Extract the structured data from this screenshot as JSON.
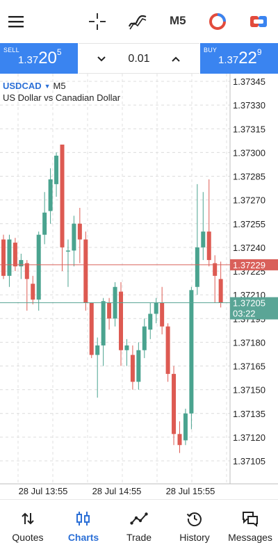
{
  "toolbar": {
    "timeframe_label": "M5",
    "icons": [
      "menu-icon",
      "crosshair-icon",
      "indicators-icon",
      "timeframe",
      "chart-type-icon",
      "one-click-trading-icon"
    ]
  },
  "trade_panel": {
    "sell": {
      "label": "SELL",
      "price_prefix": "1.37",
      "price_big": "20",
      "price_sup": "5"
    },
    "buy": {
      "label": "BUY",
      "price_prefix": "1.37",
      "price_big": "22",
      "price_sup": "9"
    },
    "lot_value": "0.01"
  },
  "symbol": {
    "name": "USDCAD",
    "timeframe": "M5",
    "description": "US Dollar vs Canadian Dollar"
  },
  "colors": {
    "accent": "#3a84f0",
    "bull": "#4aa38f",
    "bear": "#dd5a52",
    "ask_line": "#d9605a",
    "bid_line": "#5aa596"
  },
  "chart_data": {
    "type": "candlestick",
    "symbol": "USDCAD",
    "timeframe": "M5",
    "ylim": [
      1.37095,
      1.37355
    ],
    "y_ticks": [
      "1.37345",
      "1.37330",
      "1.37315",
      "1.37300",
      "1.37285",
      "1.37270",
      "1.37255",
      "1.37240",
      "1.37225",
      "1.37210",
      "1.37195",
      "1.37180",
      "1.37165",
      "1.37150",
      "1.37135",
      "1.37120",
      "1.37105"
    ],
    "x_ticks": [
      "28 Jul 13:55",
      "28 Jul 14:55",
      "28 Jul 15:55"
    ],
    "ask_price": "1.37229",
    "bid_price": "1.37205",
    "bid_countdown": "03:22",
    "grid": true,
    "candles": [
      {
        "o": 1.37245,
        "h": 1.37248,
        "l": 1.3722,
        "c": 1.37222
      },
      {
        "o": 1.37222,
        "h": 1.37248,
        "l": 1.37215,
        "c": 1.37245
      },
      {
        "o": 1.37243,
        "h": 1.37246,
        "l": 1.37225,
        "c": 1.37228
      },
      {
        "o": 1.37228,
        "h": 1.37236,
        "l": 1.3722,
        "c": 1.37232
      },
      {
        "o": 1.3723,
        "h": 1.37232,
        "l": 1.372,
        "c": 1.3722
      },
      {
        "o": 1.37217,
        "h": 1.37222,
        "l": 1.37204,
        "c": 1.37207
      },
      {
        "o": 1.37207,
        "h": 1.3725,
        "l": 1.372,
        "c": 1.37248
      },
      {
        "o": 1.37248,
        "h": 1.37275,
        "l": 1.37242,
        "c": 1.37262
      },
      {
        "o": 1.37263,
        "h": 1.3729,
        "l": 1.37255,
        "c": 1.37283
      },
      {
        "o": 1.3728,
        "h": 1.373,
        "l": 1.37272,
        "c": 1.37298
      },
      {
        "o": 1.37305,
        "h": 1.37305,
        "l": 1.37225,
        "c": 1.3724
      },
      {
        "o": 1.37238,
        "h": 1.37245,
        "l": 1.37215,
        "c": 1.37238
      },
      {
        "o": 1.37238,
        "h": 1.3726,
        "l": 1.37228,
        "c": 1.37255
      },
      {
        "o": 1.37255,
        "h": 1.37265,
        "l": 1.3723,
        "c": 1.37245
      },
      {
        "o": 1.37245,
        "h": 1.3725,
        "l": 1.372,
        "c": 1.37205
      },
      {
        "o": 1.37205,
        "h": 1.37205,
        "l": 1.3717,
        "c": 1.37172
      },
      {
        "o": 1.37172,
        "h": 1.37183,
        "l": 1.37145,
        "c": 1.37178
      },
      {
        "o": 1.37178,
        "h": 1.37208,
        "l": 1.37165,
        "c": 1.37206
      },
      {
        "o": 1.37205,
        "h": 1.37208,
        "l": 1.37188,
        "c": 1.37195
      },
      {
        "o": 1.37195,
        "h": 1.37218,
        "l": 1.3719,
        "c": 1.37215
      },
      {
        "o": 1.37212,
        "h": 1.37218,
        "l": 1.37165,
        "c": 1.37175
      },
      {
        "o": 1.37175,
        "h": 1.37182,
        "l": 1.37165,
        "c": 1.37178
      },
      {
        "o": 1.37172,
        "h": 1.37178,
        "l": 1.3715,
        "c": 1.37155
      },
      {
        "o": 1.37155,
        "h": 1.3718,
        "l": 1.3715,
        "c": 1.37175
      },
      {
        "o": 1.37175,
        "h": 1.37195,
        "l": 1.3717,
        "c": 1.3719
      },
      {
        "o": 1.37188,
        "h": 1.37205,
        "l": 1.37182,
        "c": 1.37198
      },
      {
        "o": 1.37198,
        "h": 1.37208,
        "l": 1.37192,
        "c": 1.37205
      },
      {
        "o": 1.37205,
        "h": 1.37215,
        "l": 1.37185,
        "c": 1.3719
      },
      {
        "o": 1.3719,
        "h": 1.37192,
        "l": 1.37155,
        "c": 1.3716
      },
      {
        "o": 1.3716,
        "h": 1.37165,
        "l": 1.37115,
        "c": 1.37122
      },
      {
        "o": 1.37122,
        "h": 1.3713,
        "l": 1.3711,
        "c": 1.37115
      },
      {
        "o": 1.37118,
        "h": 1.37138,
        "l": 1.37115,
        "c": 1.37135
      },
      {
        "o": 1.37135,
        "h": 1.37215,
        "l": 1.37125,
        "c": 1.37213
      },
      {
        "o": 1.37215,
        "h": 1.3728,
        "l": 1.3721,
        "c": 1.3724
      },
      {
        "o": 1.3724,
        "h": 1.37275,
        "l": 1.37232,
        "c": 1.3725
      },
      {
        "o": 1.3725,
        "h": 1.37283,
        "l": 1.37228,
        "c": 1.37232
      },
      {
        "o": 1.3723,
        "h": 1.37235,
        "l": 1.37205,
        "c": 1.37222
      },
      {
        "o": 1.3722,
        "h": 1.37231,
        "l": 1.37202,
        "c": 1.37205
      }
    ]
  },
  "nav": [
    {
      "label": "Quotes",
      "icon": "quotes-icon",
      "active": false
    },
    {
      "label": "Charts",
      "icon": "charts-icon",
      "active": true
    },
    {
      "label": "Trade",
      "icon": "trade-icon",
      "active": false
    },
    {
      "label": "History",
      "icon": "history-icon",
      "active": false
    },
    {
      "label": "Messages",
      "icon": "messages-icon",
      "active": false
    }
  ]
}
